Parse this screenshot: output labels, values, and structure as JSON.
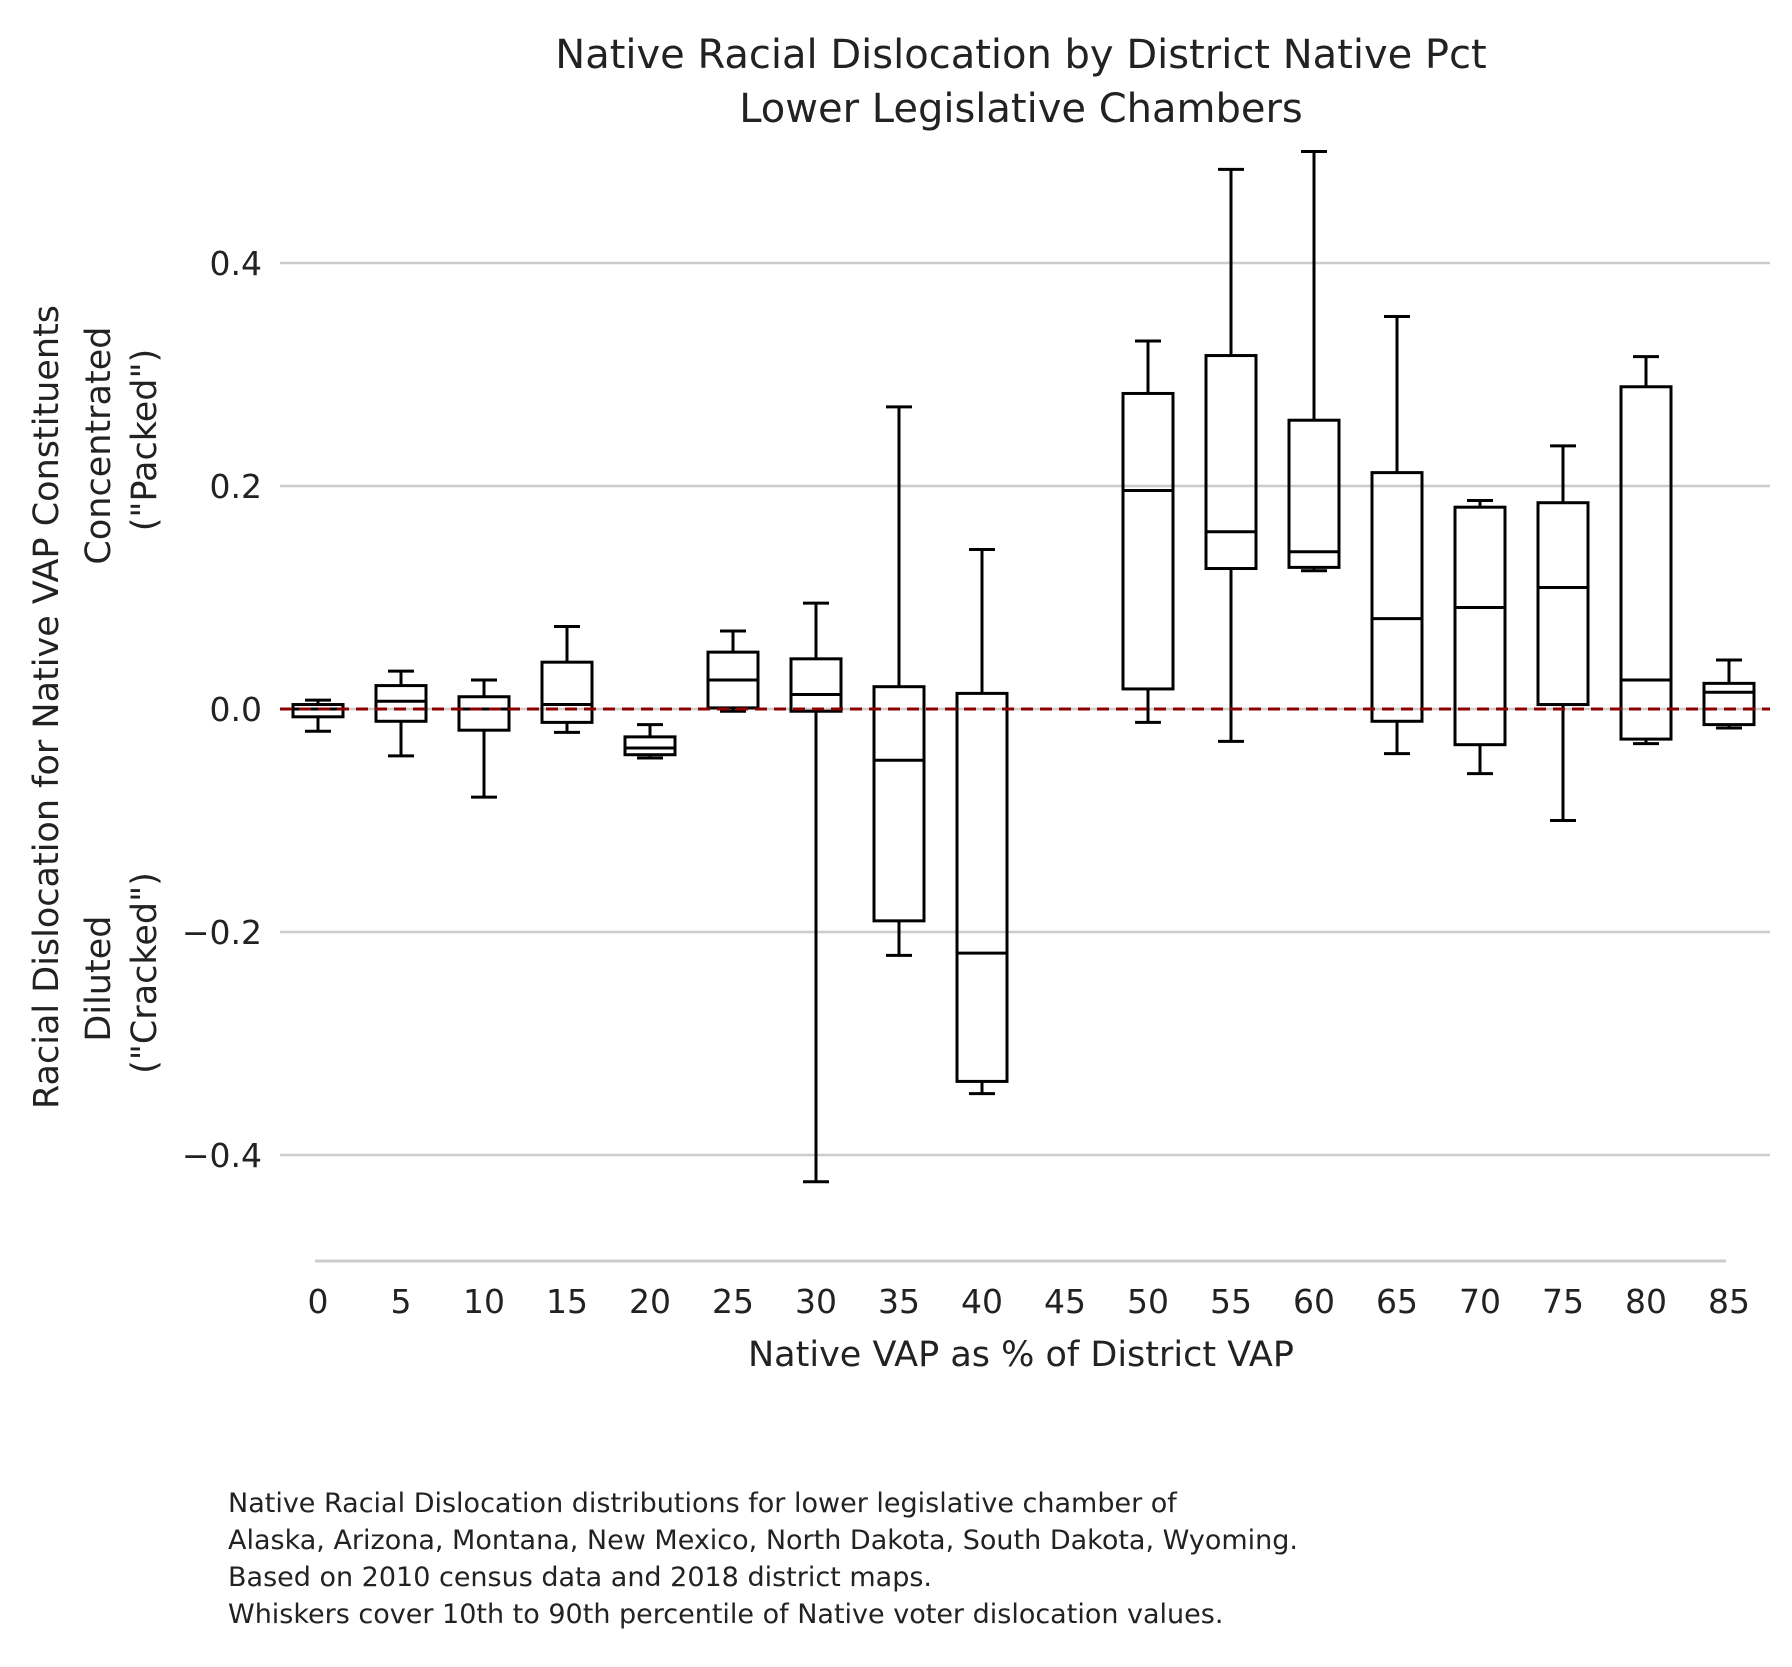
{
  "chart_data": {
    "type": "box",
    "title": [
      "Native Racial Dislocation by District Native Pct",
      "Lower Legislative Chambers"
    ],
    "xlabel": "Native VAP as % of District VAP",
    "ylabel": [
      "Racial Dislocation for Native VAP Constituents",
      "Diluted\n(\"Cracked\")",
      "Concentrated\n(\"Packed\")"
    ],
    "ylim": [
      -0.5,
      0.5
    ],
    "yticks": [
      {
        "value": 0.4,
        "label": "0.4"
      },
      {
        "value": 0.2,
        "label": "0.2"
      },
      {
        "value": 0.0,
        "label": "0.0"
      },
      {
        "value": -0.2,
        "label": "−0.2"
      },
      {
        "value": -0.4,
        "label": "−0.4"
      }
    ],
    "grid": true,
    "reference_line": {
      "value": 0.0,
      "style": "dashed",
      "color": "#8b0000"
    },
    "categories": [
      "0",
      "5",
      "10",
      "15",
      "20",
      "25",
      "30",
      "35",
      "40",
      "45",
      "50",
      "55",
      "60",
      "65",
      "70",
      "75",
      "80",
      "85"
    ],
    "boxes": [
      {
        "category": "0",
        "whislo": -0.02,
        "q1": -0.007,
        "med": 0.0,
        "q3": 0.004,
        "whishi": 0.008
      },
      {
        "category": "5",
        "whislo": -0.042,
        "q1": -0.011,
        "med": 0.007,
        "q3": 0.021,
        "whishi": 0.034
      },
      {
        "category": "10",
        "whislo": -0.079,
        "q1": -0.019,
        "med": 0.0,
        "q3": 0.011,
        "whishi": 0.026
      },
      {
        "category": "15",
        "whislo": -0.021,
        "q1": -0.012,
        "med": 0.004,
        "q3": 0.042,
        "whishi": 0.074
      },
      {
        "category": "20",
        "whislo": -0.044,
        "q1": -0.041,
        "med": -0.035,
        "q3": -0.025,
        "whishi": -0.014
      },
      {
        "category": "25",
        "whislo": -0.002,
        "q1": 0.001,
        "med": 0.026,
        "q3": 0.051,
        "whishi": 0.07
      },
      {
        "category": "30",
        "whislo": -0.424,
        "q1": -0.002,
        "med": 0.013,
        "q3": 0.045,
        "whishi": 0.095
      },
      {
        "category": "35",
        "whislo": -0.221,
        "q1": -0.19,
        "med": -0.046,
        "q3": 0.02,
        "whishi": 0.271
      },
      {
        "category": "40",
        "whislo": -0.345,
        "q1": -0.334,
        "med": -0.219,
        "q3": 0.014,
        "whishi": 0.143
      },
      {
        "category": "50",
        "whislo": -0.012,
        "q1": 0.018,
        "med": 0.196,
        "q3": 0.283,
        "whishi": 0.33
      },
      {
        "category": "55",
        "whislo": -0.029,
        "q1": 0.126,
        "med": 0.159,
        "q3": 0.317,
        "whishi": 0.484
      },
      {
        "category": "60",
        "whislo": 0.124,
        "q1": 0.127,
        "med": 0.141,
        "q3": 0.259,
        "whishi": 0.5
      },
      {
        "category": "65",
        "whislo": -0.04,
        "q1": -0.011,
        "med": 0.081,
        "q3": 0.212,
        "whishi": 0.352
      },
      {
        "category": "70",
        "whislo": -0.058,
        "q1": -0.032,
        "med": 0.091,
        "q3": 0.181,
        "whishi": 0.187
      },
      {
        "category": "75",
        "whislo": -0.1,
        "q1": 0.004,
        "med": 0.109,
        "q3": 0.185,
        "whishi": 0.236
      },
      {
        "category": "80",
        "whislo": -0.031,
        "q1": -0.027,
        "med": 0.026,
        "q3": 0.289,
        "whishi": 0.316
      },
      {
        "category": "85",
        "whislo": -0.017,
        "q1": -0.014,
        "med": 0.015,
        "q3": 0.023,
        "whishi": 0.044
      }
    ]
  },
  "footnote": [
    "Native Racial Dislocation distributions for lower legislative chamber of",
    "Alaska, Arizona, Montana, New Mexico, North Dakota, South Dakota, Wyoming.",
    "Based on 2010 census data and 2018 district maps.",
    "Whiskers cover 10th to 90th percentile of Native voter dislocation values."
  ]
}
